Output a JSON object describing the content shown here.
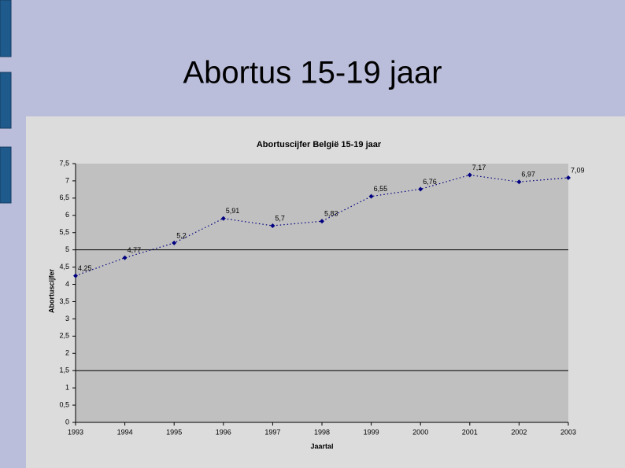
{
  "slide": {
    "title": "Abortus 15-19 jaar"
  },
  "chart_data": {
    "type": "line",
    "title": "Abortuscijfer België 15-19 jaar",
    "x_label": "Jaartal",
    "y_label": "Abortuscijfer",
    "categories": [
      "1993",
      "1994",
      "1995",
      "1996",
      "1997",
      "1998",
      "1999",
      "2000",
      "2001",
      "2002",
      "2003"
    ],
    "values": [
      4.25,
      4.77,
      5.2,
      5.91,
      5.7,
      5.83,
      6.55,
      6.76,
      7.17,
      6.97,
      7.09
    ],
    "value_labels": [
      "4,25",
      "4,77",
      "5,2",
      "5,91",
      "5,7",
      "5,83",
      "6,55",
      "6,76",
      "7,17",
      "6,97",
      "7,09"
    ],
    "color": "#000080",
    "ylim": [
      0,
      7.5
    ],
    "yticks": [
      0,
      {
        "value": 0.5,
        "label": "0,5"
      },
      1,
      {
        "value": 1.5,
        "label": "1,5"
      },
      2,
      {
        "value": 2.5,
        "label": "2,5"
      },
      3,
      {
        "value": 3.5,
        "label": "3,5"
      },
      4,
      {
        "value": 4.5,
        "label": "4,5"
      },
      5,
      {
        "value": 5.5,
        "label": "5,5"
      },
      6,
      {
        "value": 6.5,
        "label": "6,5"
      },
      7,
      {
        "value": 7.5,
        "label": "7,5"
      }
    ],
    "grid_lines": [
      1.5,
      5
    ]
  }
}
